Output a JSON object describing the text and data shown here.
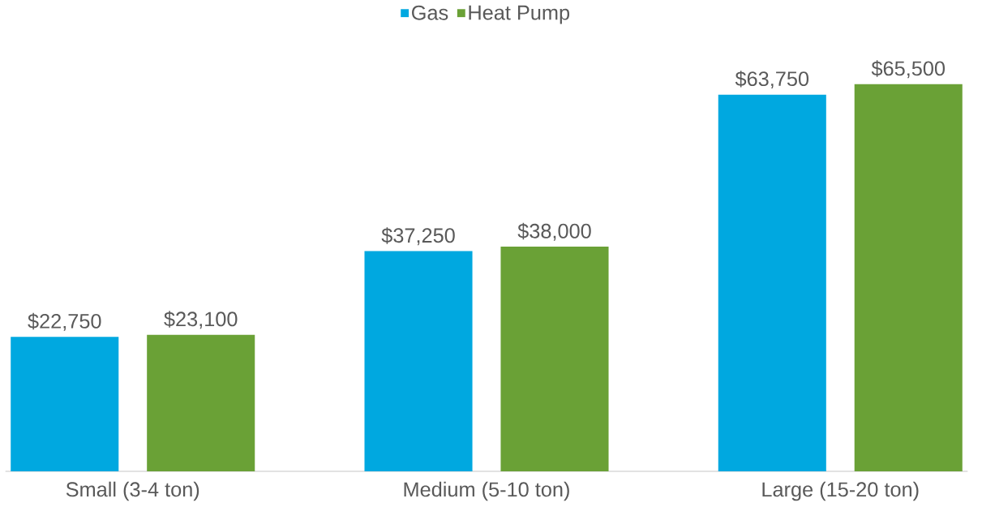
{
  "chart_data": {
    "type": "bar",
    "categories": [
      "Small (3-4 ton)",
      "Medium (5-10 ton)",
      "Large (15-20 ton)"
    ],
    "series": [
      {
        "name": "Gas",
        "color": "#00a8e0",
        "values": [
          22750,
          37250,
          63750
        ],
        "value_labels": [
          "$22,750",
          "$37,250",
          "$63,750"
        ]
      },
      {
        "name": "Heat Pump",
        "color": "#6aa136",
        "values": [
          23100,
          38000,
          65500
        ],
        "value_labels": [
          "$23,100",
          "$38,000",
          "$65,500"
        ]
      }
    ],
    "legend": "top"
  }
}
